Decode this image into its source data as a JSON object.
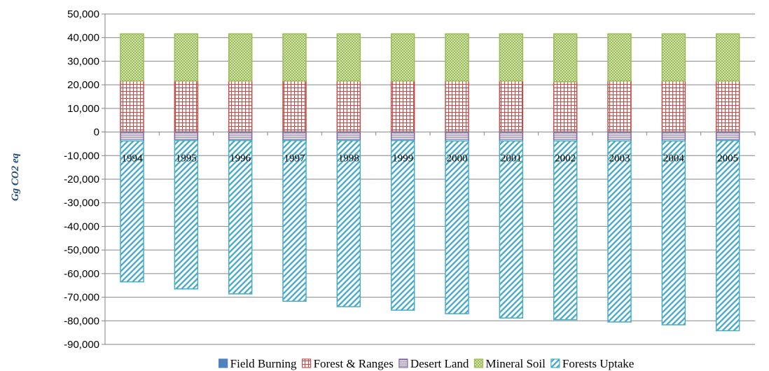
{
  "chart_data": {
    "type": "bar",
    "stacked": true,
    "title": "",
    "xlabel": "",
    "ylabel": "Gg CO2 eq",
    "ylim": [
      -90000,
      50000
    ],
    "ytick_step": 10000,
    "grid": true,
    "legend_position": "bottom",
    "categories": [
      "1994",
      "1995",
      "1996",
      "1997",
      "1998",
      "1999",
      "2000",
      "2001",
      "2002",
      "2003",
      "2004",
      "2005"
    ],
    "series": [
      {
        "name": "Field Burning",
        "color": "#4f81bd",
        "pattern": "solid",
        "values": [
          100,
          100,
          100,
          100,
          100,
          100,
          100,
          100,
          100,
          100,
          100,
          100
        ]
      },
      {
        "name": "Forest & Ranges",
        "color": "#c0504d",
        "pattern": "grid",
        "values": [
          21500,
          21500,
          21500,
          21500,
          21500,
          21500,
          21500,
          21500,
          21200,
          21500,
          21500,
          21500
        ]
      },
      {
        "name": "Desert Land",
        "color": "#8064a2",
        "pattern": "horizontal",
        "values": [
          -3800,
          -3600,
          -3600,
          -3600,
          -3600,
          -3600,
          -3800,
          -3800,
          -3800,
          -3800,
          -3800,
          -3600
        ]
      },
      {
        "name": "Mineral Soil",
        "color": "#9bbb59",
        "pattern": "dots",
        "values": [
          20000,
          20000,
          20000,
          20000,
          20000,
          20000,
          20000,
          20000,
          20300,
          20000,
          20000,
          20000
        ]
      },
      {
        "name": "Forests Uptake",
        "color": "#4bacc6",
        "pattern": "diagonal",
        "values": [
          -59700,
          -62900,
          -65000,
          -68100,
          -70400,
          -71900,
          -73200,
          -75000,
          -75700,
          -76700,
          -77900,
          -80600
        ]
      }
    ]
  }
}
